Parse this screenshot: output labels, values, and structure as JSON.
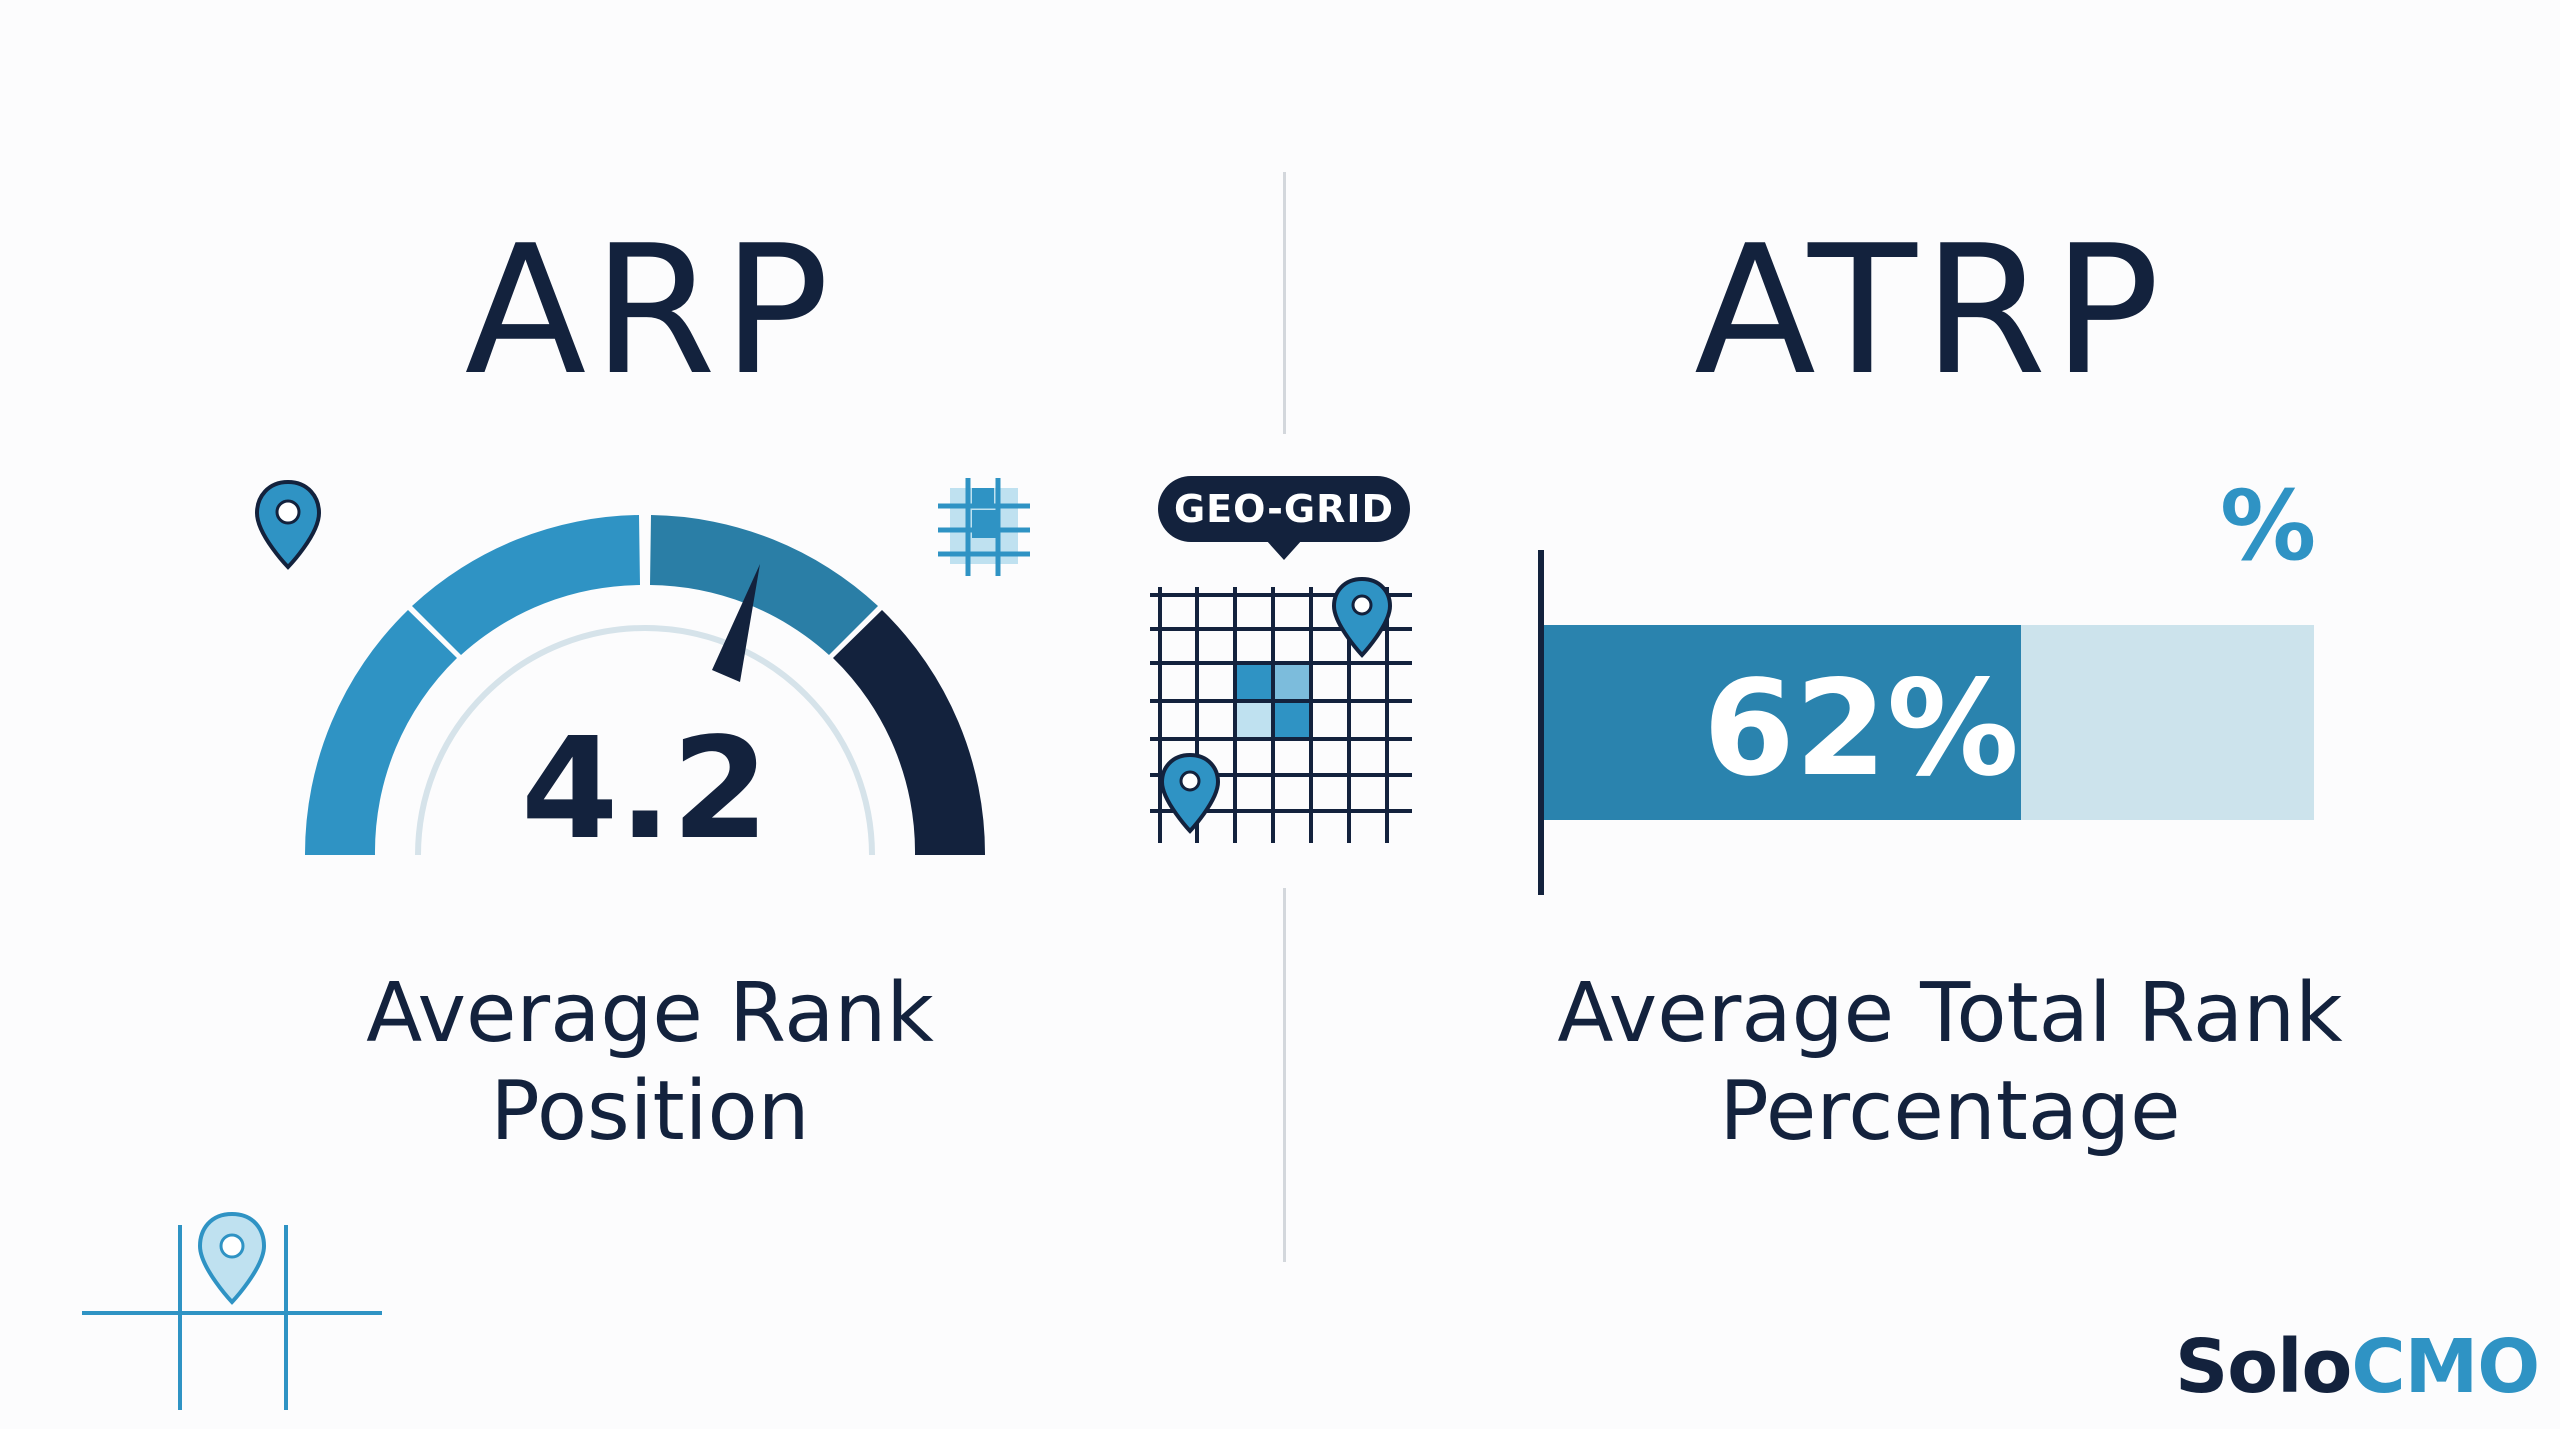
{
  "left": {
    "heading": "ARP",
    "value": "4.2",
    "label_line1": "Average Rank",
    "label_line2": "Position"
  },
  "center": {
    "tag": "GEO-GRID"
  },
  "right": {
    "heading": "ATRP",
    "value_text": "62%",
    "value": 62,
    "label_line1": "Average Total Rank",
    "label_line2": "Percentage",
    "icon_text": "%"
  },
  "logo": {
    "part1": "Solo",
    "part2": "CMO"
  },
  "colors": {
    "navy": "#13223d",
    "blue": "#2f93c4",
    "light_blue": "#cce3ec"
  },
  "icons": [
    "map-pin-icon",
    "grid-icon",
    "percent-icon",
    "street-map-icon"
  ]
}
